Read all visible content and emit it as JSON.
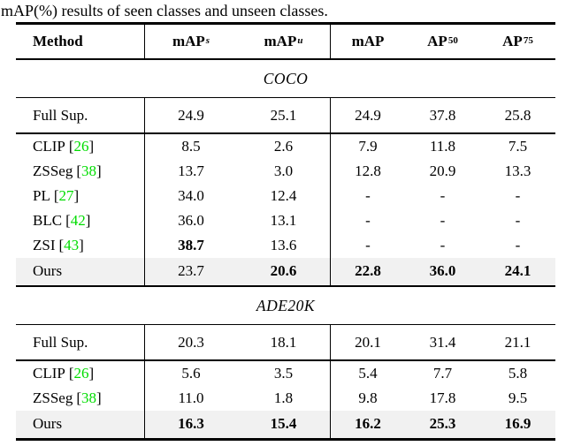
{
  "caption": "mAP(%) results of seen classes and unseen classes.",
  "colors": {
    "citation_green": "#00dd00",
    "highlight_row": "#f1f1f1",
    "rule_black": "#000000"
  },
  "header": {
    "method_label": "Method",
    "metric_labels": [
      {
        "base": "mAP",
        "sup": "s",
        "sup_italic": true
      },
      {
        "base": "mAP",
        "sup": "u",
        "sup_italic": true
      },
      {
        "base": "mAP",
        "sup": "",
        "sup_italic": false
      },
      {
        "base": "AP",
        "sup": "50",
        "sup_italic": false
      },
      {
        "base": "AP",
        "sup": "75",
        "sup_italic": false
      }
    ]
  },
  "cite_brackets": {
    "open": "[",
    "close": "]"
  },
  "sections": [
    {
      "title": "COCO",
      "rows": [
        {
          "method": "Full Sup.",
          "cite": "",
          "values": [
            "24.9",
            "25.1",
            "24.9",
            "37.8",
            "25.8"
          ],
          "bold": [
            false,
            false,
            false,
            false,
            false
          ],
          "highlight": false,
          "tall": true,
          "rule_below": true
        },
        {
          "method": "CLIP",
          "cite": "26",
          "values": [
            "8.5",
            "2.6",
            "7.9",
            "11.8",
            "7.5"
          ],
          "bold": [
            false,
            false,
            false,
            false,
            false
          ],
          "highlight": false,
          "tall": false,
          "rule_below": false
        },
        {
          "method": "ZSSeg",
          "cite": "38",
          "values": [
            "13.7",
            "3.0",
            "12.8",
            "20.9",
            "13.3"
          ],
          "bold": [
            false,
            false,
            false,
            false,
            false
          ],
          "highlight": false,
          "tall": false,
          "rule_below": false
        },
        {
          "method": "PL",
          "cite": "27",
          "values": [
            "34.0",
            "12.4",
            "-",
            "-",
            "-"
          ],
          "bold": [
            false,
            false,
            false,
            false,
            false
          ],
          "highlight": false,
          "tall": false,
          "rule_below": false
        },
        {
          "method": "BLC",
          "cite": "42",
          "values": [
            "36.0",
            "13.1",
            "-",
            "-",
            "-"
          ],
          "bold": [
            false,
            false,
            false,
            false,
            false
          ],
          "highlight": false,
          "tall": false,
          "rule_below": false
        },
        {
          "method": "ZSI",
          "cite": "43",
          "values": [
            "38.7",
            "13.6",
            "-",
            "-",
            "-"
          ],
          "bold": [
            true,
            false,
            false,
            false,
            false
          ],
          "highlight": false,
          "tall": false,
          "rule_below": false
        },
        {
          "method": "Ours",
          "cite": "",
          "values": [
            "23.7",
            "20.6",
            "22.8",
            "36.0",
            "24.1"
          ],
          "bold": [
            false,
            true,
            true,
            true,
            true
          ],
          "highlight": true,
          "tall": false,
          "rule_below": false
        }
      ]
    },
    {
      "title": "ADE20K",
      "rows": [
        {
          "method": "Full Sup.",
          "cite": "",
          "values": [
            "20.3",
            "18.1",
            "20.1",
            "31.4",
            "21.1"
          ],
          "bold": [
            false,
            false,
            false,
            false,
            false
          ],
          "highlight": false,
          "tall": true,
          "rule_below": true
        },
        {
          "method": "CLIP",
          "cite": "26",
          "values": [
            "5.6",
            "3.5",
            "5.4",
            "7.7",
            "5.8"
          ],
          "bold": [
            false,
            false,
            false,
            false,
            false
          ],
          "highlight": false,
          "tall": false,
          "rule_below": false
        },
        {
          "method": "ZSSeg",
          "cite": "38",
          "values": [
            "11.0",
            "1.8",
            "9.8",
            "17.8",
            "9.5"
          ],
          "bold": [
            false,
            false,
            false,
            false,
            false
          ],
          "highlight": false,
          "tall": false,
          "rule_below": false
        },
        {
          "method": "Ours",
          "cite": "",
          "values": [
            "16.3",
            "15.4",
            "16.2",
            "25.3",
            "16.9"
          ],
          "bold": [
            true,
            true,
            true,
            true,
            true
          ],
          "highlight": true,
          "tall": false,
          "rule_below": false
        }
      ]
    }
  ]
}
